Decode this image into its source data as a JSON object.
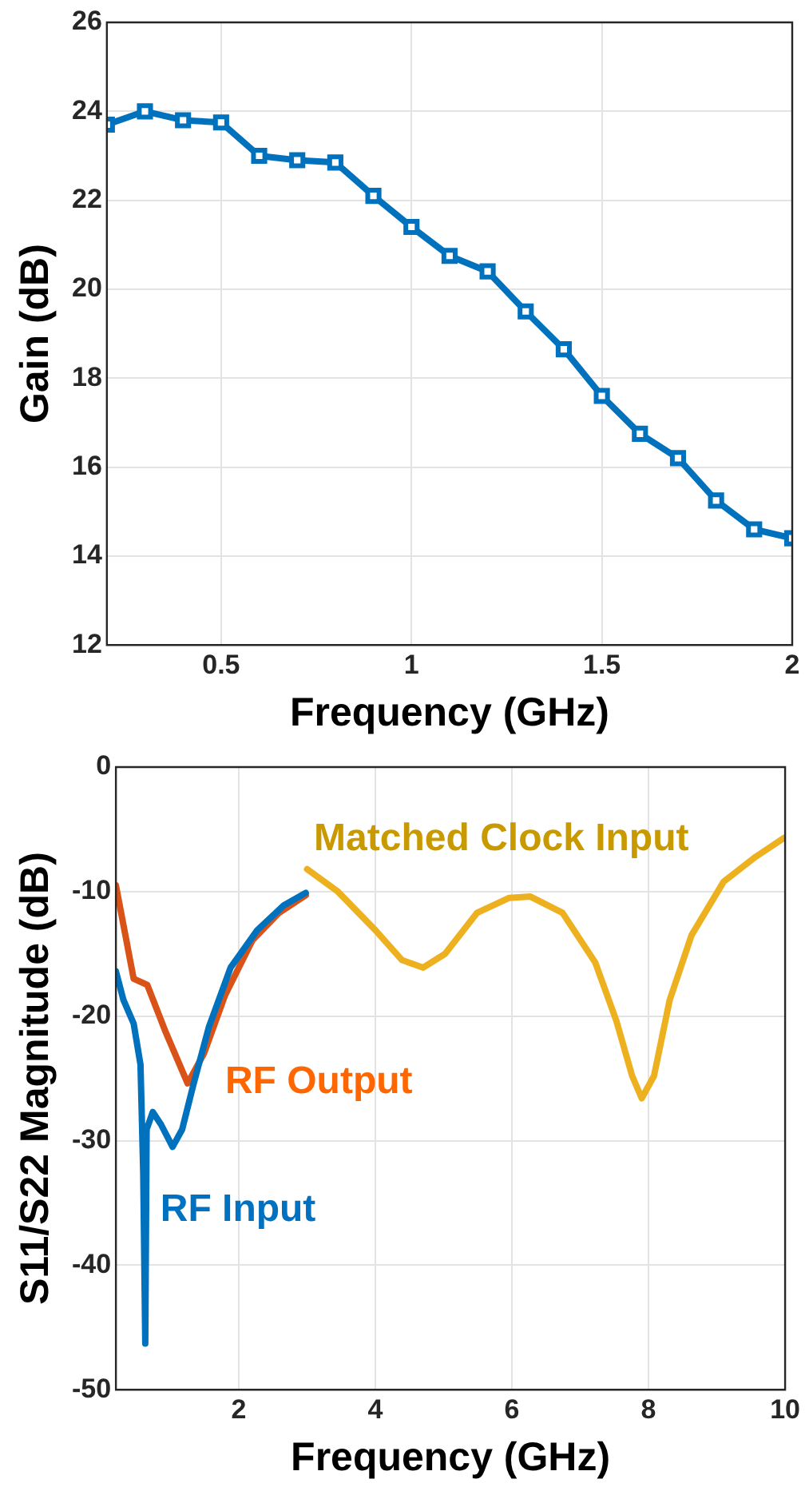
{
  "chart_data": [
    {
      "type": "line",
      "xlabel": "Frequency (GHz)",
      "ylabel": "Gain (dB)",
      "xlim": [
        0.2,
        2
      ],
      "xticks": [
        0.5,
        1,
        1.5,
        2
      ],
      "ylim": [
        12,
        26
      ],
      "yticks": [
        12,
        14,
        16,
        18,
        20,
        22,
        24,
        26
      ],
      "grid": true,
      "legend": false,
      "marker": "square",
      "line_style": "solid",
      "x": [
        0.2,
        0.3,
        0.4,
        0.5,
        0.6,
        0.7,
        0.8,
        0.9,
        1.0,
        1.1,
        1.2,
        1.3,
        1.4,
        1.5,
        1.6,
        1.7,
        1.8,
        1.9,
        2.0
      ],
      "series": [
        {
          "color": "#0072bd",
          "values": [
            23.7,
            24.0,
            23.8,
            23.75,
            23.0,
            22.9,
            22.85,
            22.1,
            21.4,
            20.75,
            20.4,
            19.5,
            18.65,
            17.6,
            16.75,
            16.2,
            15.25,
            14.6,
            14.4
          ]
        }
      ]
    },
    {
      "type": "line",
      "xlabel": "Frequency (GHz)",
      "ylabel": "S11/S22 Magnitude (dB)",
      "xlim": [
        0.2,
        10
      ],
      "xticks": [
        2,
        4,
        6,
        8,
        10
      ],
      "ylim": [
        -50,
        0
      ],
      "yticks": [
        -50,
        -40,
        -30,
        -20,
        -10,
        0
      ],
      "grid": true,
      "legend": false,
      "marker": "none",
      "line_style": "solid",
      "series": [
        {
          "name": "RF Input",
          "color": "#0072bd",
          "x": [
            0.2,
            0.31,
            0.46,
            0.56,
            0.6,
            0.63,
            0.65,
            0.74,
            0.86,
            1.03,
            1.17,
            1.33,
            1.56,
            1.88,
            2.27,
            2.66,
            2.98
          ],
          "values": [
            -16.4,
            -18.7,
            -20.6,
            -23.9,
            -32.6,
            -46.3,
            -29.1,
            -27.7,
            -28.7,
            -30.5,
            -29.1,
            -25.6,
            -20.9,
            -16.1,
            -13.1,
            -11.1,
            -10.1
          ]
        },
        {
          "name": "RF Output",
          "color": "#d95319",
          "x": [
            0.2,
            0.46,
            0.66,
            0.93,
            1.25,
            1.49,
            1.8,
            2.2,
            2.59,
            2.98
          ],
          "values": [
            -9.5,
            -17,
            -17.5,
            -21.3,
            -25.4,
            -23,
            -18.3,
            -13.9,
            -11.7,
            -10.3
          ]
        },
        {
          "name": "Matched Clock Input",
          "color": "#edb120",
          "x": [
            3.0,
            3.45,
            4.0,
            4.39,
            4.7,
            5.02,
            5.49,
            5.96,
            6.27,
            6.74,
            7.22,
            7.53,
            7.76,
            7.9,
            8.08,
            8.31,
            8.63,
            9.1,
            9.57,
            9.98
          ],
          "values": [
            -8.2,
            -10,
            -13.1,
            -15.5,
            -16.1,
            -15,
            -11.7,
            -10.5,
            -10.4,
            -11.7,
            -15.7,
            -20.4,
            -24.8,
            -26.6,
            -24.8,
            -18.7,
            -13.5,
            -9.2,
            -7.2,
            -5.7
          ]
        }
      ]
    }
  ]
}
